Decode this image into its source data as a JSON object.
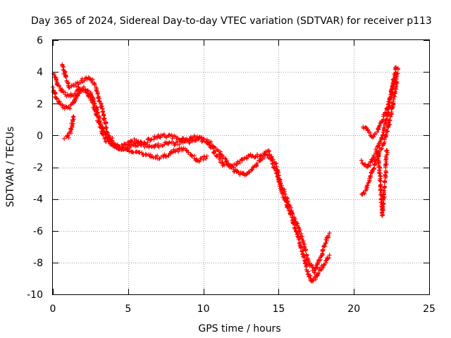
{
  "chart_data": {
    "type": "scatter",
    "title": "Day 365 of 2024, Sidereal Day-to-day VTEC variation (SDTVAR) for receiver p113",
    "xlabel": "GPS time / hours",
    "ylabel": "SDTVAR / TECUs",
    "xlim": [
      0,
      25
    ],
    "ylim": [
      -10,
      6
    ],
    "xticks": [
      0,
      5,
      10,
      15,
      20,
      25
    ],
    "yticks": [
      -10,
      -8,
      -6,
      -4,
      -2,
      0,
      2,
      4,
      6
    ],
    "grid": true,
    "marker": "+",
    "series": [
      {
        "name": "SDTVAR",
        "color": "#ff0000",
        "bands": [
          [
            [
              0.0,
              3.0
            ],
            [
              0.25,
              2.3
            ],
            [
              0.55,
              1.9
            ],
            [
              0.9,
              1.7
            ],
            [
              1.2,
              1.8
            ],
            [
              1.5,
              2.3
            ],
            [
              1.8,
              2.8
            ],
            [
              2.1,
              3.0
            ],
            [
              2.5,
              2.7
            ],
            [
              2.9,
              1.7
            ],
            [
              3.3,
              0.4
            ],
            [
              3.8,
              -0.4
            ],
            [
              4.3,
              -0.8
            ],
            [
              4.8,
              -0.8
            ],
            [
              5.4,
              -0.6
            ],
            [
              6.0,
              -0.6
            ],
            [
              6.8,
              -0.7
            ],
            [
              7.5,
              -0.5
            ],
            [
              8.2,
              -0.5
            ],
            [
              9.0,
              -0.4
            ],
            [
              9.8,
              -0.2
            ],
            [
              10.4,
              -0.4
            ],
            [
              11.0,
              -1.0
            ],
            [
              11.5,
              -1.6
            ],
            [
              12.0,
              -2.2
            ],
            [
              12.6,
              -2.5
            ],
            [
              13.2,
              -2.2
            ],
            [
              13.7,
              -1.6
            ],
            [
              14.1,
              -1.2
            ],
            [
              14.5,
              -1.5
            ],
            [
              14.9,
              -2.5
            ],
            [
              15.3,
              -3.8
            ],
            [
              15.7,
              -4.8
            ],
            [
              16.1,
              -5.8
            ],
            [
              16.5,
              -7.0
            ],
            [
              16.9,
              -8.5
            ],
            [
              17.2,
              -9.2
            ],
            [
              17.5,
              -8.9
            ],
            [
              17.8,
              -8.4
            ],
            [
              18.1,
              -8.0
            ],
            [
              18.4,
              -7.5
            ]
          ],
          [
            [
              0.1,
              3.8
            ],
            [
              0.35,
              3.2
            ],
            [
              0.65,
              2.7
            ],
            [
              1.0,
              2.5
            ],
            [
              1.4,
              2.6
            ],
            [
              1.8,
              3.0
            ],
            [
              2.2,
              2.8
            ],
            [
              2.6,
              2.2
            ],
            [
              3.0,
              1.0
            ],
            [
              3.5,
              -0.3
            ],
            [
              4.0,
              -0.6
            ],
            [
              4.6,
              -0.7
            ],
            [
              5.3,
              -0.3
            ],
            [
              6.0,
              -0.5
            ],
            [
              6.6,
              -0.2
            ],
            [
              7.3,
              0.0
            ],
            [
              8.0,
              -0.1
            ],
            [
              8.8,
              -0.3
            ],
            [
              9.5,
              -0.1
            ],
            [
              10.2,
              -0.4
            ],
            [
              10.7,
              -1.0
            ],
            [
              11.3,
              -1.8
            ],
            [
              11.9,
              -2.0
            ],
            [
              12.5,
              -1.6
            ],
            [
              13.1,
              -1.3
            ],
            [
              13.7,
              -1.3
            ],
            [
              14.3,
              -1.0
            ],
            [
              14.8,
              -1.8
            ],
            [
              15.2,
              -3.2
            ],
            [
              15.7,
              -4.4
            ],
            [
              16.2,
              -5.6
            ],
            [
              16.6,
              -6.6
            ],
            [
              17.0,
              -8.0
            ],
            [
              17.4,
              -8.6
            ],
            [
              17.8,
              -7.6
            ],
            [
              18.2,
              -6.5
            ],
            [
              18.4,
              -6.2
            ]
          ],
          [
            [
              0.6,
              4.5
            ],
            [
              0.9,
              3.6
            ],
            [
              1.1,
              3.0
            ],
            [
              2.4,
              3.7
            ],
            [
              2.8,
              3.2
            ],
            [
              3.3,
              1.6
            ],
            [
              3.6,
              0.2
            ],
            [
              4.2,
              -0.7
            ],
            [
              5.6,
              -1.1
            ],
            [
              6.4,
              -1.3
            ],
            [
              7.2,
              -1.4
            ],
            [
              8.0,
              -1.0
            ],
            [
              8.8,
              -0.8
            ],
            [
              9.6,
              -1.6
            ],
            [
              10.3,
              -1.3
            ]
          ],
          [
            [
              0.8,
              -0.1
            ],
            [
              1.0,
              -0.1
            ],
            [
              1.2,
              0.3
            ],
            [
              1.4,
              1.3
            ]
          ],
          [
            [
              20.5,
              -3.8
            ],
            [
              20.8,
              -3.4
            ],
            [
              21.1,
              -2.6
            ],
            [
              21.4,
              -1.8
            ],
            [
              21.7,
              -1.0
            ],
            [
              22.0,
              -0.4
            ],
            [
              22.3,
              0.6
            ],
            [
              22.6,
              2.0
            ],
            [
              22.9,
              3.6
            ]
          ],
          [
            [
              20.6,
              0.6
            ],
            [
              20.9,
              0.3
            ],
            [
              21.2,
              -0.1
            ],
            [
              21.5,
              0.2
            ],
            [
              21.8,
              0.8
            ],
            [
              22.1,
              1.4
            ],
            [
              22.4,
              2.4
            ],
            [
              22.7,
              3.5
            ],
            [
              22.95,
              4.2
            ]
          ],
          [
            [
              20.5,
              -1.6
            ],
            [
              20.9,
              -2.0
            ],
            [
              21.3,
              -1.4
            ],
            [
              21.6,
              -0.6
            ],
            [
              21.9,
              -0.1
            ],
            [
              22.2,
              1.2
            ],
            [
              22.5,
              2.8
            ],
            [
              22.8,
              4.4
            ]
          ],
          [
            [
              21.6,
              -1.0
            ],
            [
              21.7,
              -2.2
            ],
            [
              21.8,
              -3.4
            ],
            [
              21.85,
              -4.4
            ],
            [
              21.9,
              -5.0
            ],
            [
              22.0,
              -3.6
            ],
            [
              22.1,
              -2.2
            ],
            [
              22.2,
              -0.8
            ]
          ]
        ]
      }
    ]
  }
}
